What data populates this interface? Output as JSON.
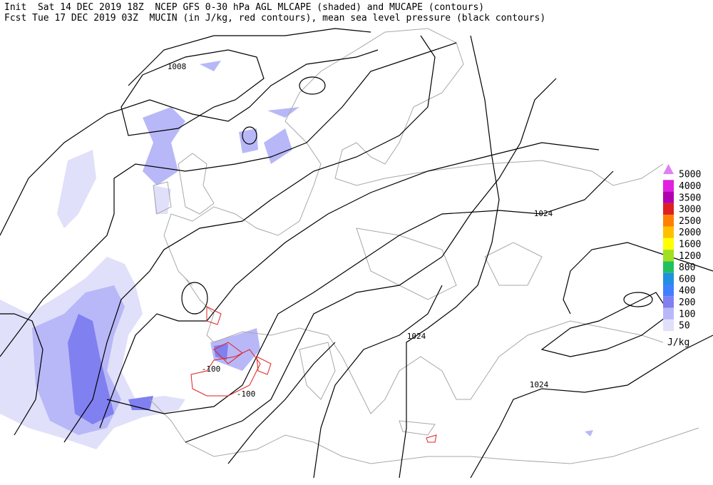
{
  "header": {
    "line1": "Init  Sat 14 DEC 2019 18Z  NCEP GFS 0-30 hPa AGL MLCAPE (shaded) and MUCAPE (contours)",
    "line2": "Fcst Tue 17 DEC 2019 03Z  MUCIN (in J/kg, red contours), mean sea level pressure (black contours)"
  },
  "contour_labels": [
    "1008",
    "1024",
    "1024",
    "1024",
    "-100",
    "-100"
  ],
  "legend": {
    "items": [
      {
        "label": "5000",
        "color": "#e080f0"
      },
      {
        "label": "4000",
        "color": "#e020e0"
      },
      {
        "label": "3500",
        "color": "#b000b0"
      },
      {
        "label": "3000",
        "color": "#e02020"
      },
      {
        "label": "2500",
        "color": "#ff8000"
      },
      {
        "label": "2000",
        "color": "#ffc000"
      },
      {
        "label": "1600",
        "color": "#ffff00"
      },
      {
        "label": "1200",
        "color": "#a0e020"
      },
      {
        "label": "800",
        "color": "#20c060"
      },
      {
        "label": "600",
        "color": "#2090e0"
      },
      {
        "label": "400",
        "color": "#4080ff"
      },
      {
        "label": "200",
        "color": "#8080f0"
      },
      {
        "label": "100",
        "color": "#b8b8f8"
      },
      {
        "label": "50",
        "color": "#e0e0fa"
      }
    ],
    "unit": "J/kg"
  }
}
